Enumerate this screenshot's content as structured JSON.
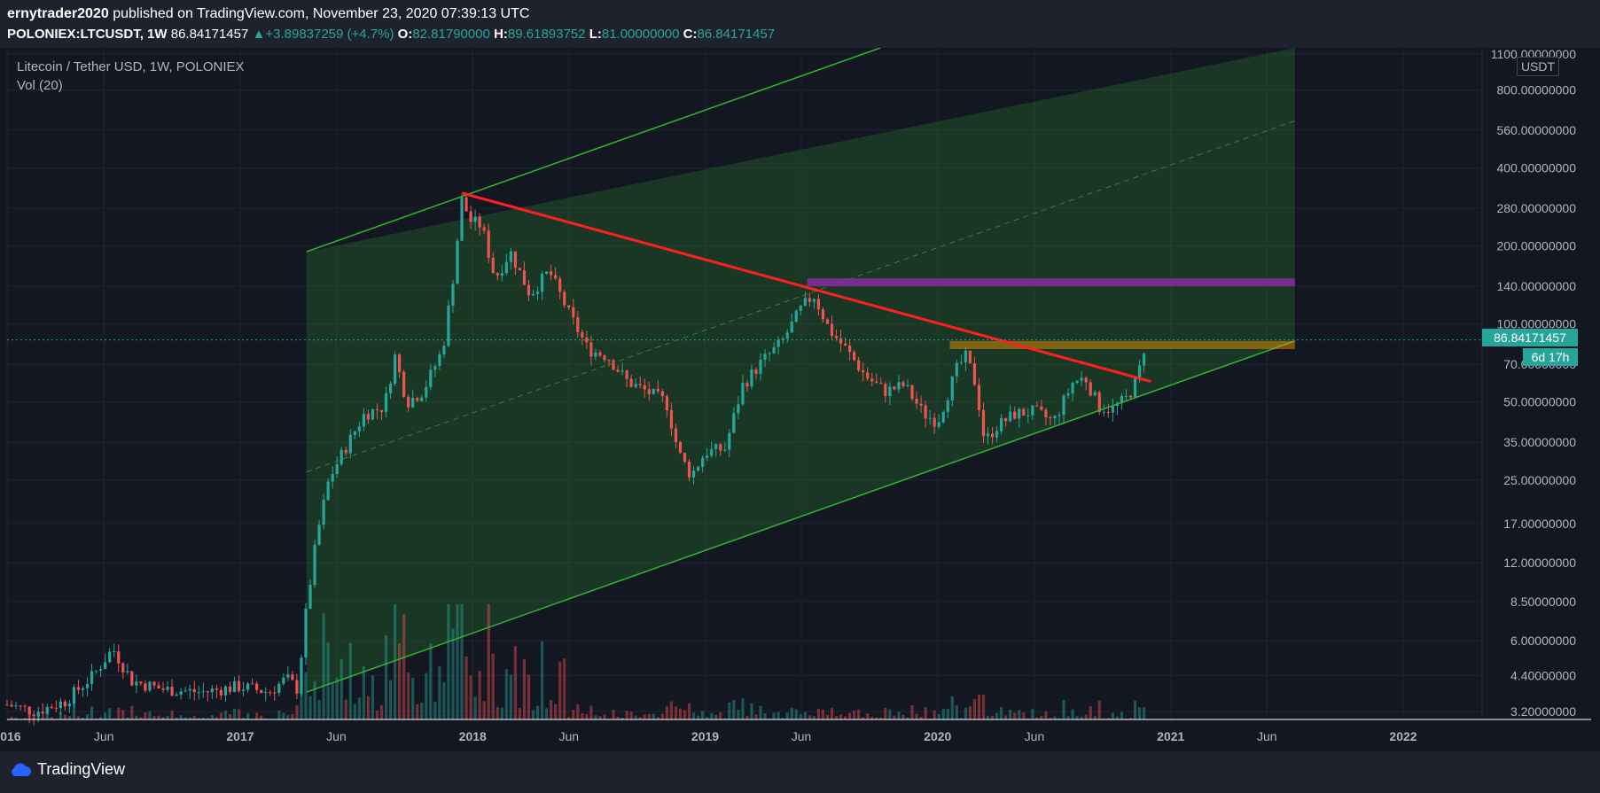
{
  "header": {
    "author": "ernytrader2020",
    "published_text": "published on TradingView.com, November 23, 2020 07:39:13 UTC",
    "symbol": "POLONIEX:LTCUSDT, 1W",
    "last": "86.84171457",
    "change": "+3.89837259 (+4.7%)",
    "o_label": "O:",
    "o_value": "82.81790000",
    "h_label": "H:",
    "h_value": "89.61893752",
    "l_label": "L:",
    "l_value": "81.00000000",
    "c_label": "C:",
    "c_value": "86.84171457"
  },
  "legend": {
    "title": "Litecoin / Tether USD, 1W, POLONIEX",
    "volume": "Vol (20)"
  },
  "price_scale": {
    "unit": "USDT",
    "current_price_label": "86.84171457",
    "countdown_label": "6d 17h"
  },
  "footer": {
    "brand": "TradingView"
  },
  "colors": {
    "background": "#131722",
    "up": "#26a69a",
    "down": "#ef5350",
    "trendline": "#ff1f1f",
    "channel": "#2fb52f",
    "resistance_zone": "#9c27b0",
    "support_zone": "#ff9800"
  },
  "chart_data": {
    "type": "candlestick",
    "scale": "log",
    "y_ticks": [
      "1100.00000000",
      "800.00000000",
      "560.00000000",
      "400.00000000",
      "280.00000000",
      "200.00000000",
      "140.00000000",
      "100.00000000",
      "70.00000000",
      "50.00000000",
      "35.00000000",
      "25.00000000",
      "17.00000000",
      "12.00000000",
      "8.50000000",
      "6.00000000",
      "4.40000000",
      "3.20000000"
    ],
    "x_ticks": [
      "2016",
      "Jun",
      "2017",
      "Jun",
      "2018",
      "Jun",
      "2019",
      "Jun",
      "2020",
      "Jun",
      "2021",
      "Jun",
      "2022"
    ],
    "x_tick_dates": [
      "2016-01-01",
      "2016-06-01",
      "2017-01-01",
      "2017-06-01",
      "2018-01-01",
      "2018-06-01",
      "2019-01-01",
      "2019-06-01",
      "2020-01-01",
      "2020-06-01",
      "2021-01-01",
      "2021-06-01",
      "2022-01-01"
    ],
    "series": [
      {
        "name": "close",
        "points": [
          [
            "2016-01-01",
            3.4
          ],
          [
            "2016-02-15",
            3.2
          ],
          [
            "2016-04-01",
            3.5
          ],
          [
            "2016-05-15",
            4.4
          ],
          [
            "2016-06-15",
            5.6
          ],
          [
            "2016-07-15",
            4.2
          ],
          [
            "2016-09-01",
            3.9
          ],
          [
            "2016-11-01",
            3.8
          ],
          [
            "2017-01-01",
            4.0
          ],
          [
            "2017-02-15",
            3.8
          ],
          [
            "2017-03-15",
            4.3
          ],
          [
            "2017-04-01",
            3.9
          ],
          [
            "2017-04-15",
            8.0
          ],
          [
            "2017-05-01",
            15
          ],
          [
            "2017-05-20",
            25
          ],
          [
            "2017-06-05",
            30
          ],
          [
            "2017-07-15",
            45
          ],
          [
            "2017-08-15",
            48
          ],
          [
            "2017-09-01",
            75
          ],
          [
            "2017-09-20",
            50
          ],
          [
            "2017-10-15",
            55
          ],
          [
            "2017-11-15",
            80
          ],
          [
            "2017-12-01",
            150
          ],
          [
            "2017-12-15",
            300
          ],
          [
            "2017-12-29",
            250
          ],
          [
            "2018-01-15",
            240
          ],
          [
            "2018-02-05",
            150
          ],
          [
            "2018-03-01",
            190
          ],
          [
            "2018-04-01",
            130
          ],
          [
            "2018-05-01",
            160
          ],
          [
            "2018-06-01",
            110
          ],
          [
            "2018-07-01",
            80
          ],
          [
            "2018-08-01",
            75
          ],
          [
            "2018-09-01",
            60
          ],
          [
            "2018-10-01",
            55
          ],
          [
            "2018-11-01",
            50
          ],
          [
            "2018-11-20",
            32
          ],
          [
            "2018-12-10",
            26
          ],
          [
            "2019-01-01",
            32
          ],
          [
            "2019-02-01",
            33
          ],
          [
            "2019-03-01",
            58
          ],
          [
            "2019-04-01",
            72
          ],
          [
            "2019-05-01",
            85
          ],
          [
            "2019-06-01",
            115
          ],
          [
            "2019-06-20",
            130
          ],
          [
            "2019-07-15",
            95
          ],
          [
            "2019-08-10",
            80
          ],
          [
            "2019-09-10",
            63
          ],
          [
            "2019-10-10",
            55
          ],
          [
            "2019-11-10",
            58
          ],
          [
            "2019-12-10",
            45
          ],
          [
            "2020-01-01",
            42
          ],
          [
            "2020-02-01",
            68
          ],
          [
            "2020-02-15",
            75
          ],
          [
            "2020-03-01",
            58
          ],
          [
            "2020-03-15",
            35
          ],
          [
            "2020-04-01",
            40
          ],
          [
            "2020-05-01",
            45
          ],
          [
            "2020-06-01",
            46
          ],
          [
            "2020-07-01",
            42
          ],
          [
            "2020-08-01",
            60
          ],
          [
            "2020-08-20",
            62
          ],
          [
            "2020-09-10",
            48
          ],
          [
            "2020-10-01",
            47
          ],
          [
            "2020-10-25",
            52
          ],
          [
            "2020-11-10",
            62
          ],
          [
            "2020-11-23",
            86.84
          ]
        ]
      }
    ],
    "volume_series": {
      "name": "Vol (20)"
    },
    "annotations": [
      {
        "type": "trendline",
        "from": [
          "2017-12-15",
          320
        ],
        "to": [
          "2020-12-01",
          60
        ]
      },
      {
        "type": "rising_channel",
        "lower_from": [
          "2017-04-15",
          3.8
        ],
        "lower_to": [
          "2021-07-15",
          86
        ],
        "upper_from": [
          "2017-04-15",
          190
        ]
      },
      {
        "type": "zone",
        "label": "resistance",
        "from": [
          "2019-06-10",
          150
        ],
        "to": [
          "2021-07-15",
          140
        ]
      },
      {
        "type": "zone",
        "label": "support",
        "from": [
          "2020-01-20",
          86
        ],
        "to": [
          "2021-07-15",
          80
        ]
      }
    ]
  }
}
